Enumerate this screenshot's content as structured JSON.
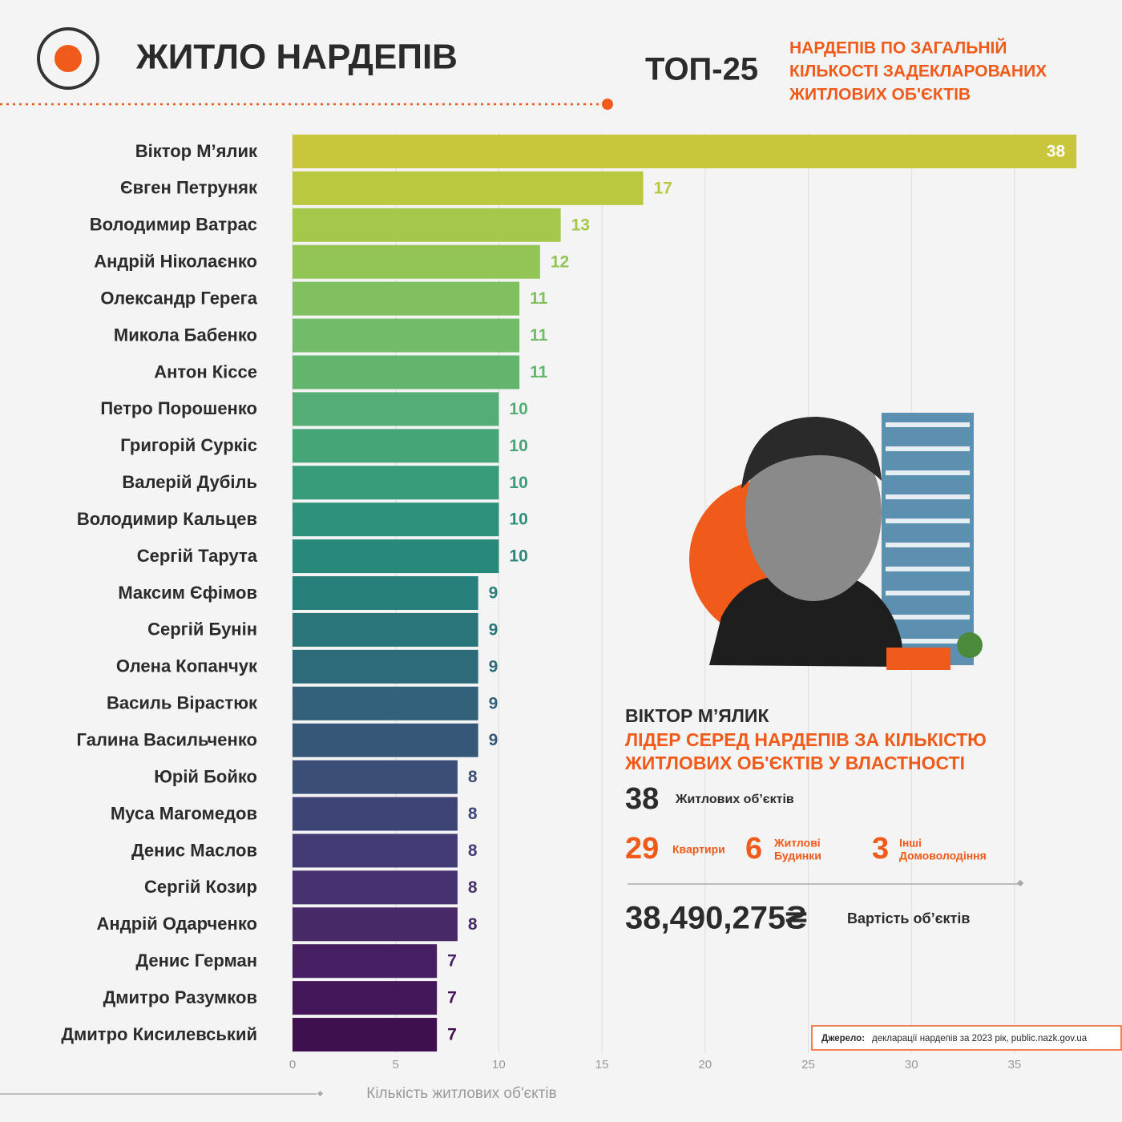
{
  "header": {
    "title": "ЖИТЛО НАРДЕПІВ",
    "top": "ТОП-25",
    "subtitle": [
      "НАРДЕПІВ ПО ЗАГАЛЬНІЙ",
      "КІЛЬКОСТІ ЗАДЕКЛАРОВАНИХ",
      "ЖИТЛОВИХ ОБ'ЄКТІВ"
    ]
  },
  "chart_data": {
    "type": "bar",
    "orientation": "horizontal",
    "categories": [
      "Віктор М’ялик",
      "Євген Петруняк",
      "Володимир Ватрас",
      "Андрій Ніколаєнко",
      "Олександр Герега",
      "Микола Бабенко",
      "Антон Кіссе",
      "Петро Порошенко",
      "Григорій Суркіс",
      "Валерій Дубіль",
      "Володимир Кальцев",
      "Сергій Тарута",
      "Максим Єфімов",
      "Сергій Бунін",
      "Олена Копанчук",
      "Василь Вірастюк",
      "Галина Васильченко",
      "Юрій Бойко",
      "Муса Магомедов",
      "Денис Маслов",
      "Сергій Козир",
      "Андрій Одарченко",
      "Денис Герман",
      "Дмитро Разумков",
      "Дмитро Кисилевський"
    ],
    "values": [
      38,
      17,
      13,
      12,
      11,
      11,
      11,
      10,
      10,
      10,
      10,
      10,
      9,
      9,
      9,
      9,
      9,
      8,
      8,
      8,
      8,
      8,
      7,
      7,
      7
    ],
    "colors": [
      "#c9c63b",
      "#b9c83e",
      "#a5c84a",
      "#93c556",
      "#80c060",
      "#72bb68",
      "#63b56e",
      "#53ad74",
      "#45a577",
      "#389c7a",
      "#2e927b",
      "#28897b",
      "#277f7b",
      "#2a757a",
      "#2e6b7a",
      "#326179",
      "#365778",
      "#3a4e77",
      "#3e4476",
      "#423b74",
      "#45326f",
      "#472968",
      "#461f62",
      "#43175a",
      "#3e1050"
    ],
    "xlim": [
      0,
      38.5
    ],
    "xticks": [
      0,
      5,
      10,
      15,
      20,
      25,
      30,
      35
    ],
    "xlabel": "Кількість житлових об'єктів",
    "grid": true
  },
  "highlight": {
    "name": "ВІКТОР М’ЯЛИК",
    "lead": [
      "ЛІДЕР СЕРЕД НАРДЕПІВ ЗА КІЛЬКІСТЮ",
      "ЖИТЛОВИХ ОБ'ЄКТІВ У ВЛАСТНОСТІ"
    ],
    "total": "38",
    "total_label": "Житлових об’єктів",
    "flats": "29",
    "flats_label": "Квартири",
    "houses": "6",
    "houses_label": [
      "Житлові",
      "Будинки"
    ],
    "other": "3",
    "other_label": [
      "Інші",
      "Домоволодіння"
    ],
    "cost": "38,490,275₴",
    "cost_label": "Вартість об’єктів"
  },
  "source": {
    "label": "Джерело:",
    "text": "декларації нардепів за 2023 рік, public.nazk.gov.ua"
  }
}
